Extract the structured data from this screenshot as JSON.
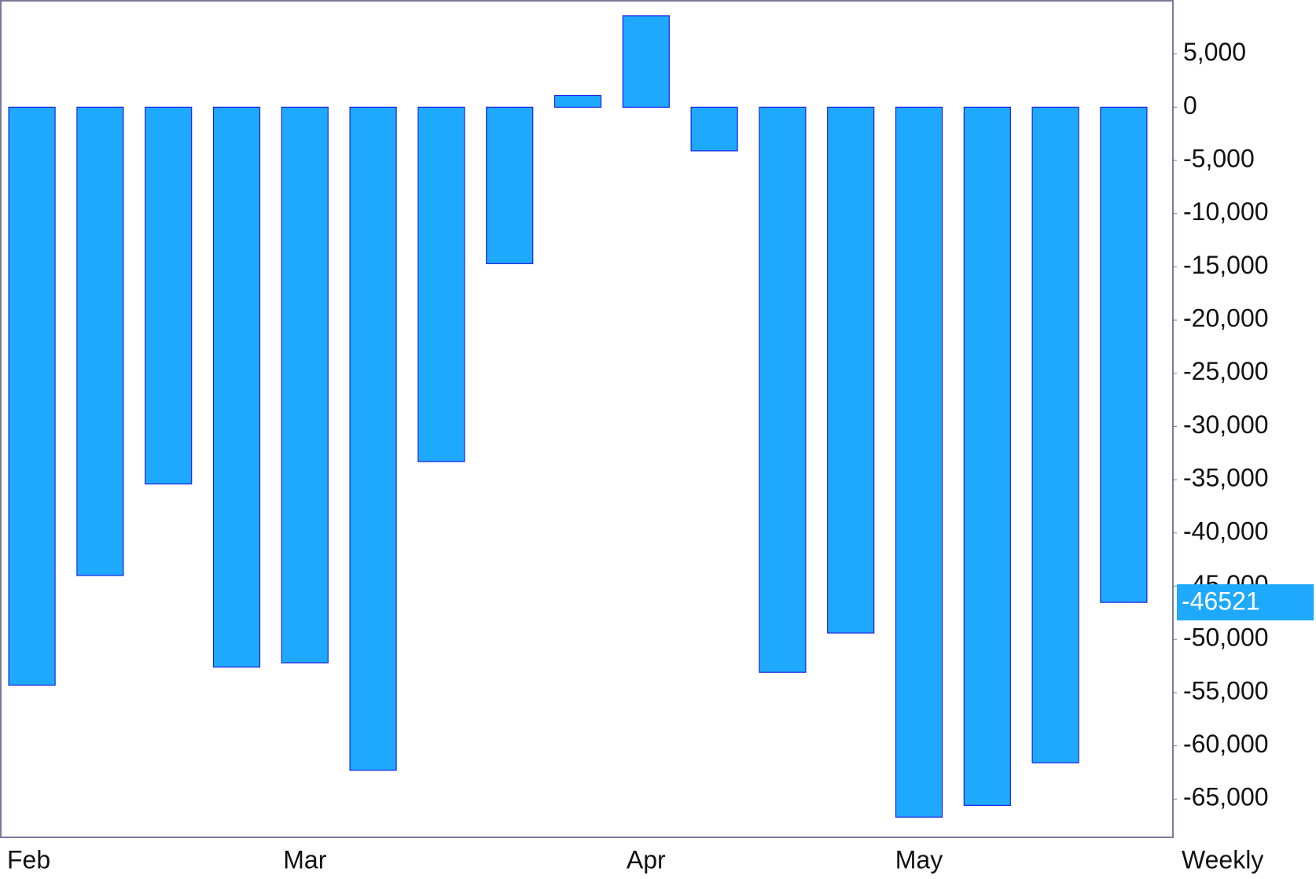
{
  "chart_data": {
    "type": "bar",
    "categories": [
      "Feb",
      null,
      null,
      null,
      "Mar",
      null,
      null,
      null,
      null,
      "Apr",
      null,
      null,
      null,
      "May",
      null,
      null,
      null
    ],
    "values": [
      -54300,
      -44000,
      -35400,
      -52600,
      -52200,
      -62300,
      -33300,
      -14700,
      1100,
      8600,
      -4100,
      -53100,
      -49400,
      -66700,
      -65600,
      -61600,
      -46521
    ],
    "color": "#1fa9fc",
    "ylim": [
      -68600,
      10000
    ],
    "yticks": [
      {
        "value": 5000,
        "label": "5,000"
      },
      0,
      {
        "value": -5000,
        "label": "-5,000"
      },
      {
        "value": -10000,
        "label": "-10,000"
      },
      {
        "value": -15000,
        "label": "-15,000"
      },
      {
        "value": -20000,
        "label": "-20,000"
      },
      {
        "value": -25000,
        "label": "-25,000"
      },
      {
        "value": -30000,
        "label": "-30,000"
      },
      {
        "value": -35000,
        "label": "-35,000"
      },
      {
        "value": -40000,
        "label": "-40,000"
      },
      {
        "value": -45000,
        "label": "-45,000"
      },
      {
        "value": -50000,
        "label": "-50,000"
      },
      {
        "value": -55000,
        "label": "-55,000"
      },
      {
        "value": -60000,
        "label": "-60,000"
      },
      {
        "value": -65000,
        "label": "-65,000"
      }
    ],
    "last_value_label": "-46521",
    "periodicity": "Weekly"
  }
}
